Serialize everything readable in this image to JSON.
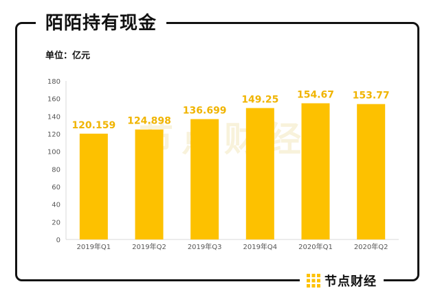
{
  "header": {
    "title": "陌陌持有现金"
  },
  "unit_label": "单位：亿元",
  "watermark": "节点财经",
  "brand": {
    "name": "节点财经"
  },
  "colors": {
    "bar": "#FDC100",
    "label": "#F0B400",
    "axis": "#555555",
    "grid": "#D9D9D9"
  },
  "chart_data": {
    "type": "bar",
    "title": "陌陌持有现金",
    "categories": [
      "2019年Q1",
      "2019年Q2",
      "2019年Q3",
      "2019年Q4",
      "2020年Q1",
      "2020年Q2"
    ],
    "values": [
      120.159,
      124.898,
      136.699,
      149.25,
      154.67,
      153.77
    ],
    "value_labels": [
      "120.159",
      "124.898",
      "136.699",
      "149.25",
      "154.67",
      "153.77"
    ],
    "ylim": [
      0,
      180
    ],
    "yticks": [
      0,
      20,
      40,
      60,
      80,
      100,
      120,
      140,
      160,
      180
    ],
    "grid": false,
    "legend": "none"
  }
}
